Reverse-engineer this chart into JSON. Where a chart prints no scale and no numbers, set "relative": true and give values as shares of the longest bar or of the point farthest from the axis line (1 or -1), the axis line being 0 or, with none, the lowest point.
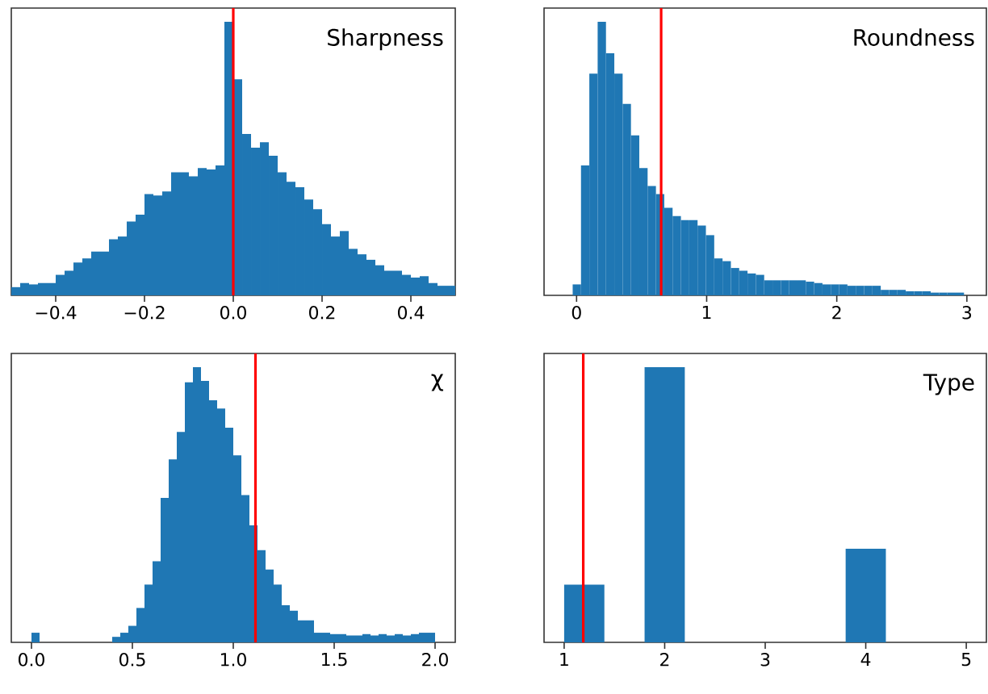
{
  "chart_data": [
    {
      "type": "bar",
      "title": "Sharpness",
      "relative": true,
      "color": "#1f77b4",
      "xlim": [
        -0.5,
        0.5
      ],
      "xticks": [
        {
          "value": -0.4,
          "label": "−0.4"
        },
        {
          "value": -0.2,
          "label": "−0.2"
        },
        {
          "value": 0,
          "label": "0.0"
        },
        {
          "value": 0.2,
          "label": "0.2"
        },
        {
          "value": 0.4,
          "label": "0.4"
        }
      ],
      "x": [
        -0.49,
        -0.47,
        -0.45,
        -0.43,
        -0.41,
        -0.39,
        -0.37,
        -0.35,
        -0.33,
        -0.31,
        -0.29,
        -0.27,
        -0.25,
        -0.23,
        -0.21,
        -0.19,
        -0.17,
        -0.15,
        -0.13,
        -0.11,
        -0.09,
        -0.07,
        -0.05,
        -0.03,
        -0.01,
        0.01,
        0.03,
        0.05,
        0.07,
        0.09,
        0.11,
        0.13,
        0.15,
        0.17,
        0.19,
        0.21,
        0.23,
        0.25,
        0.27,
        0.29,
        0.31,
        0.33,
        0.35,
        0.37,
        0.39,
        0.41,
        0.43,
        0.45,
        0.47,
        0.49
      ],
      "values": [
        0.03,
        0.045,
        0.04,
        0.045,
        0.045,
        0.075,
        0.09,
        0.12,
        0.135,
        0.16,
        0.16,
        0.205,
        0.215,
        0.27,
        0.295,
        0.37,
        0.365,
        0.38,
        0.45,
        0.45,
        0.435,
        0.465,
        0.46,
        0.475,
        1.0,
        0.79,
        0.59,
        0.54,
        0.56,
        0.51,
        0.45,
        0.415,
        0.395,
        0.35,
        0.315,
        0.26,
        0.215,
        0.235,
        0.17,
        0.15,
        0.13,
        0.11,
        0.09,
        0.09,
        0.075,
        0.065,
        0.07,
        0.045,
        0.035,
        0.035
      ],
      "ref_lines": [
        {
          "axis": "x",
          "value": 0,
          "color": "#ff0000"
        }
      ]
    },
    {
      "type": "bar",
      "title": "Roundness",
      "relative": true,
      "color": "#1f77b4",
      "xlim": [
        -0.25,
        3.15
      ],
      "xticks": [
        {
          "value": 0,
          "label": "0"
        },
        {
          "value": 1,
          "label": "1"
        },
        {
          "value": 2,
          "label": "2"
        },
        {
          "value": 3,
          "label": "3"
        }
      ],
      "x": [
        0.002,
        0.066,
        0.13,
        0.194,
        0.258,
        0.322,
        0.386,
        0.45,
        0.514,
        0.578,
        0.642,
        0.706,
        0.77,
        0.834,
        0.898,
        0.962,
        1.026,
        1.09,
        1.154,
        1.218,
        1.282,
        1.346,
        1.41,
        1.474,
        1.538,
        1.602,
        1.666,
        1.73,
        1.794,
        1.858,
        1.922,
        1.986,
        2.05,
        2.114,
        2.178,
        2.242,
        2.306,
        2.37,
        2.434,
        2.498,
        2.562,
        2.626,
        2.69,
        2.754,
        2.818,
        2.882,
        2.946
      ],
      "values": [
        0.04,
        0.475,
        0.81,
        1.0,
        0.885,
        0.81,
        0.7,
        0.585,
        0.465,
        0.4,
        0.37,
        0.32,
        0.29,
        0.275,
        0.275,
        0.255,
        0.22,
        0.135,
        0.125,
        0.1,
        0.09,
        0.08,
        0.075,
        0.055,
        0.055,
        0.055,
        0.055,
        0.055,
        0.05,
        0.045,
        0.04,
        0.04,
        0.04,
        0.035,
        0.035,
        0.035,
        0.035,
        0.02,
        0.02,
        0.02,
        0.015,
        0.015,
        0.015,
        0.01,
        0.01,
        0.01,
        0.01
      ],
      "ref_lines": [
        {
          "axis": "x",
          "value": 0.65,
          "color": "#ff0000"
        }
      ]
    },
    {
      "type": "bar",
      "title": "χ",
      "relative": true,
      "color": "#1f77b4",
      "xlim": [
        -0.1,
        2.1
      ],
      "xticks": [
        {
          "value": 0,
          "label": "0.0"
        },
        {
          "value": 0.5,
          "label": "0.5"
        },
        {
          "value": 1,
          "label": "1.0"
        },
        {
          "value": 1.5,
          "label": "1.5"
        },
        {
          "value": 2,
          "label": "2.0"
        }
      ],
      "x": [
        0.02,
        0.06,
        0.1,
        0.14,
        0.18,
        0.22,
        0.26,
        0.3,
        0.34,
        0.38,
        0.42,
        0.46,
        0.5,
        0.54,
        0.58,
        0.62,
        0.66,
        0.7,
        0.74,
        0.78,
        0.82,
        0.86,
        0.9,
        0.94,
        0.98,
        1.02,
        1.06,
        1.1,
        1.14,
        1.18,
        1.22,
        1.26,
        1.3,
        1.34,
        1.38,
        1.42,
        1.46,
        1.5,
        1.54,
        1.58,
        1.62,
        1.66,
        1.7,
        1.74,
        1.78,
        1.82,
        1.86,
        1.9,
        1.94,
        1.98
      ],
      "values": [
        0.035,
        null,
        null,
        null,
        null,
        null,
        null,
        null,
        null,
        null,
        0.02,
        0.035,
        0.06,
        0.125,
        0.21,
        0.295,
        0.525,
        0.665,
        0.765,
        0.945,
        1.0,
        0.95,
        0.88,
        0.85,
        0.78,
        0.68,
        0.535,
        0.425,
        0.335,
        0.265,
        0.21,
        0.135,
        0.115,
        0.08,
        0.08,
        0.035,
        0.035,
        0.03,
        0.03,
        0.025,
        0.025,
        0.03,
        0.025,
        0.03,
        0.025,
        0.03,
        0.025,
        0.03,
        0.035,
        0.035
      ],
      "ref_lines": [
        {
          "axis": "x",
          "value": 1.11,
          "color": "#ff0000"
        }
      ]
    },
    {
      "type": "bar",
      "title": "Type",
      "relative": true,
      "color": "#1f77b4",
      "xlim": [
        0.8,
        5.2
      ],
      "xticks": [
        {
          "value": 1,
          "label": "1"
        },
        {
          "value": 2,
          "label": "2"
        },
        {
          "value": 3,
          "label": "3"
        },
        {
          "value": 4,
          "label": "4"
        },
        {
          "value": 5,
          "label": "5"
        }
      ],
      "x": [
        1.2,
        1.6,
        2.0,
        2.4,
        2.8,
        3.2,
        3.6,
        4.0
      ],
      "values": [
        0.21,
        null,
        1.0,
        null,
        null,
        null,
        null,
        0.34
      ],
      "ref_lines": [
        {
          "axis": "x",
          "value": 1.19,
          "color": "#ff0000"
        }
      ]
    }
  ]
}
